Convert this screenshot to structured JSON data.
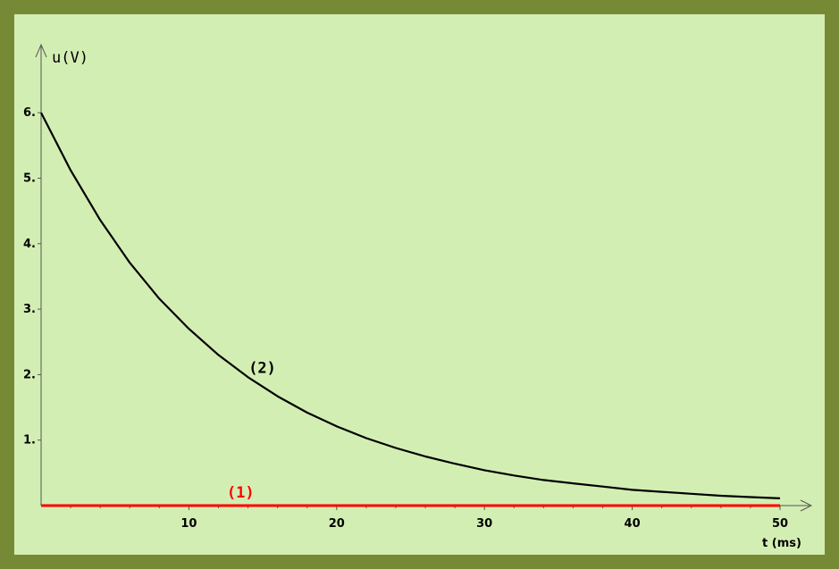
{
  "chart_data": {
    "type": "line",
    "xlabel": "t (ms)",
    "ylabel": "u(V)",
    "xlim": [
      0,
      50
    ],
    "ylim": [
      0,
      6.6
    ],
    "x_ticks": [
      10,
      20,
      30,
      40,
      50
    ],
    "y_ticks": [
      1,
      2,
      3,
      4,
      5,
      6
    ],
    "grid": false,
    "series": [
      {
        "name": "(1)",
        "color": "#ff0000",
        "x": [
          0,
          10,
          20,
          30,
          40,
          50
        ],
        "y": [
          0,
          0,
          0,
          0,
          0,
          0
        ],
        "label_at": [
          13.5,
          0
        ]
      },
      {
        "name": "(2)",
        "color": "#000000",
        "x": [
          0,
          2,
          4,
          6,
          8,
          10,
          12,
          14,
          16,
          18,
          20,
          22,
          24,
          26,
          28,
          30,
          32,
          34,
          36,
          38,
          40,
          42,
          44,
          46,
          48,
          50
        ],
        "y": [
          6.0,
          5.12,
          4.36,
          3.71,
          3.16,
          2.7,
          2.3,
          1.96,
          1.67,
          1.42,
          1.21,
          1.03,
          0.88,
          0.75,
          0.64,
          0.54,
          0.46,
          0.39,
          0.34,
          0.29,
          0.24,
          0.21,
          0.18,
          0.15,
          0.13,
          0.11
        ],
        "label_at": [
          14,
          2
        ]
      }
    ]
  }
}
